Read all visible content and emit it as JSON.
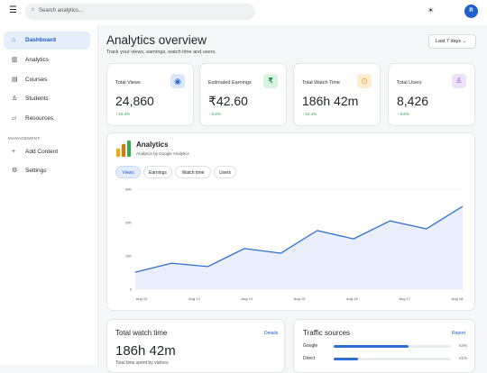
{
  "header": {
    "search_placeholder": "Search analytics...",
    "avatar": "R"
  },
  "sidebar": {
    "items": [
      "Dashboard",
      "Analytics",
      "Courses",
      "Students",
      "Resources"
    ],
    "section": "MANAGEMENT",
    "section_items": [
      "Add Content",
      "Settings"
    ]
  },
  "overview": {
    "title": "Analytics overview",
    "subtitle": "Track your views, earnings, watch time and users.",
    "range": "Last 7 days"
  },
  "stats": [
    {
      "label": "Total Views",
      "value": "24,860",
      "change": "↑ 19.4%"
    },
    {
      "label": "Estimated Earnings",
      "value": "₹42.60",
      "change": "↑ 8.2%"
    },
    {
      "label": "Total Watch Time",
      "value": "186h 42m",
      "change": "↑ 22.1%"
    },
    {
      "label": "Total Users",
      "value": "8,426",
      "change": "↑ 9.6%"
    }
  ],
  "analytics": {
    "title": "Analytics",
    "subtitle": "Analytics by Google Analytics",
    "tabs": [
      "Views",
      "Earnings",
      "Watch time",
      "Users"
    ],
    "chart_data": {
      "type": "area",
      "color": "#2f6fd1",
      "x_labels": [
        "Aug 12",
        "Aug 13",
        "Aug 14",
        "Aug 15",
        "Aug 16",
        "Aug 17",
        "Aug 18"
      ],
      "values": [
        5100,
        7800,
        6800,
        12200,
        10800,
        17600,
        15100,
        20500,
        18100,
        24860
      ],
      "ylim": [
        0,
        30000
      ],
      "yticks": [
        0,
        {
          "value": 10000,
          "label": "10K"
        },
        {
          "value": 20000,
          "label": "20K"
        },
        {
          "value": 30000,
          "label": "30K"
        }
      ]
    }
  },
  "watch": {
    "title": "Total watch time",
    "link": "Details",
    "value": "186h 42m",
    "caption": "Total time spent by visitors"
  },
  "traffic": {
    "title": "Traffic sources",
    "link": "Report",
    "rows": [
      {
        "name": "Google",
        "value": 64,
        "value_label": "64%"
      },
      {
        "name": "Direct",
        "value": 21,
        "value_label": "21%"
      }
    ]
  }
}
